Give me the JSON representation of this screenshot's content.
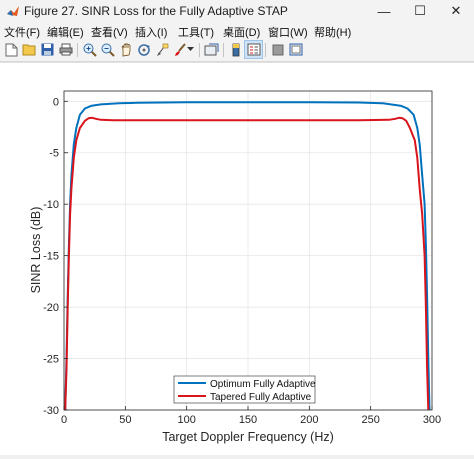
{
  "window": {
    "title": "Figure 27. SINR Loss for the Fully Adaptive STAP",
    "minimize_glyph": "—",
    "maximize_glyph": "☐",
    "close_glyph": "✕"
  },
  "menu": [
    {
      "label": "文件(F)"
    },
    {
      "label": "编辑(E)"
    },
    {
      "label": "查看(V)"
    },
    {
      "label": "插入(I)"
    },
    {
      "label": "工具(T)"
    },
    {
      "label": "桌面(D)"
    },
    {
      "label": "窗口(W)"
    },
    {
      "label": "帮助(H)"
    }
  ],
  "toolbar": [
    {
      "icon": "new-figure-icon"
    },
    {
      "icon": "open-file-icon"
    },
    {
      "icon": "save-icon"
    },
    {
      "icon": "print-icon"
    },
    {
      "icon": "zoom-in-icon"
    },
    {
      "icon": "zoom-out-icon"
    },
    {
      "icon": "pan-icon"
    },
    {
      "icon": "rotate-3d-icon"
    },
    {
      "icon": "data-cursor-icon"
    },
    {
      "icon": "brush-icon"
    },
    {
      "icon": "brush-dropdown-icon"
    },
    {
      "icon": "link-plot-icon"
    },
    {
      "icon": "insert-colorbar-icon"
    },
    {
      "icon": "insert-legend-icon"
    },
    {
      "icon": "hide-plot-tools-icon"
    },
    {
      "icon": "show-plot-tools-icon"
    }
  ],
  "colors": {
    "series1": "#0072bd",
    "series2": "#d9141b",
    "grid": "#e6e6e6",
    "axis": "#262626"
  },
  "chart_data": {
    "type": "line",
    "xlabel": "Target Doppler Frequency (Hz)",
    "ylabel": "SINR Loss (dB)",
    "xlim": [
      0,
      300
    ],
    "ylim": [
      -30,
      1
    ],
    "xticks": [
      "0",
      "50",
      "100",
      "150",
      "200",
      "250",
      "300"
    ],
    "yticks": [
      "0",
      "-5",
      "-10",
      "-15",
      "-20",
      "-25",
      "-30"
    ],
    "grid": true,
    "legend_position": "bottom-center",
    "series": [
      {
        "name": "Optimum Fully Adaptive",
        "x": [
          0,
          1,
          2,
          3,
          4,
          5,
          6,
          8,
          10,
          13,
          17,
          22,
          30,
          45,
          60,
          80,
          100,
          150,
          200,
          240,
          260,
          275,
          280,
          285,
          288,
          290,
          292,
          294,
          295,
          296,
          297,
          298,
          299,
          300
        ],
        "y": [
          -32,
          -30,
          -25,
          -19,
          -14,
          -10,
          -7.2,
          -4.2,
          -2.6,
          -1.3,
          -0.7,
          -0.45,
          -0.3,
          -0.2,
          -0.15,
          -0.12,
          -0.1,
          -0.1,
          -0.1,
          -0.12,
          -0.2,
          -0.45,
          -0.7,
          -1.3,
          -2.6,
          -4.2,
          -7.2,
          -10,
          -14,
          -19,
          -25,
          -30,
          -32,
          -32
        ]
      },
      {
        "name": "Tapered Fully Adaptive",
        "x": [
          0,
          1,
          2,
          3,
          4,
          5,
          6,
          8,
          10,
          13,
          17,
          20,
          23,
          26,
          30,
          40,
          60,
          100,
          150,
          200,
          240,
          265,
          270,
          273,
          276,
          279,
          282,
          286,
          288,
          290,
          292,
          294,
          295,
          296,
          297,
          298,
          299,
          300
        ],
        "y": [
          -32,
          -30,
          -26,
          -20,
          -15,
          -11,
          -8.5,
          -5.5,
          -3.8,
          -2.6,
          -1.9,
          -1.65,
          -1.6,
          -1.7,
          -1.8,
          -1.85,
          -1.85,
          -1.85,
          -1.85,
          -1.85,
          -1.85,
          -1.8,
          -1.7,
          -1.6,
          -1.65,
          -1.9,
          -2.6,
          -3.8,
          -5.5,
          -8.5,
          -11,
          -15,
          -20,
          -26,
          -30,
          -32,
          -32,
          -32
        ]
      }
    ]
  }
}
